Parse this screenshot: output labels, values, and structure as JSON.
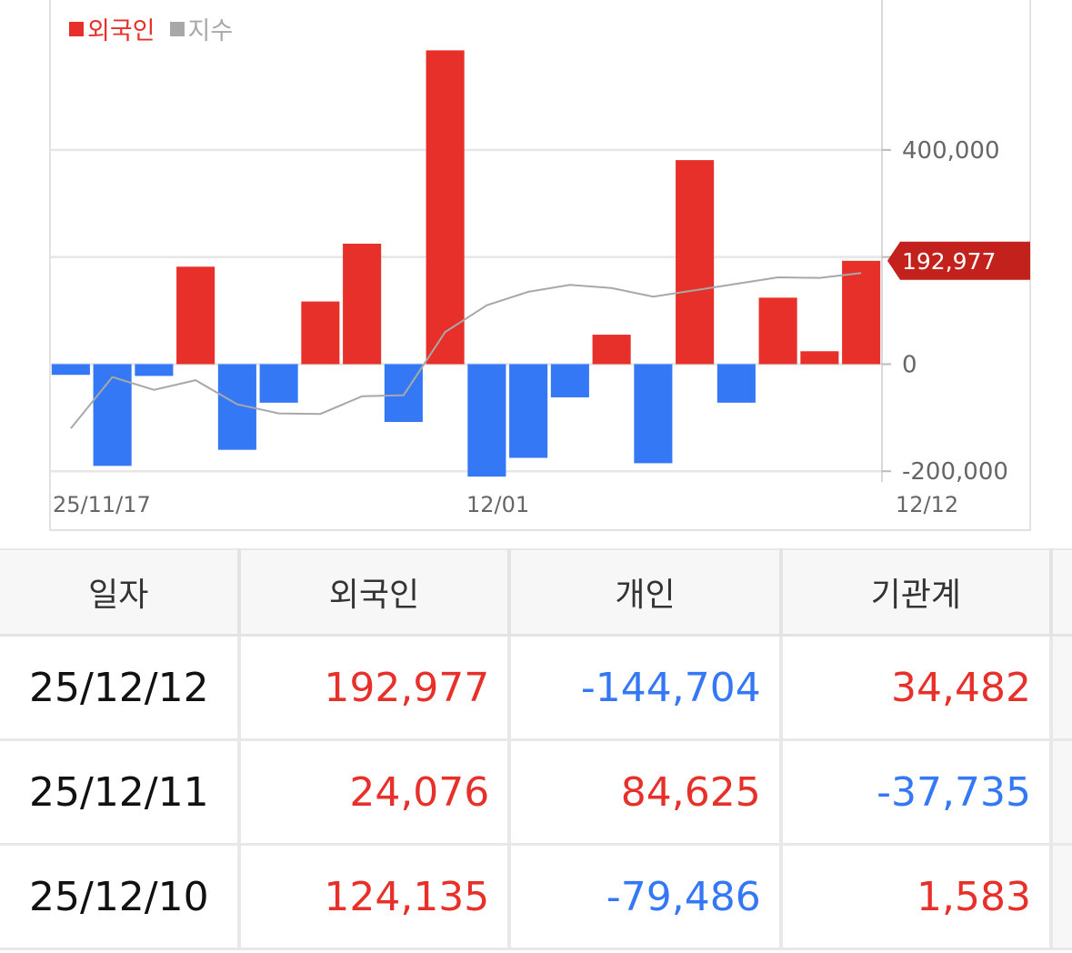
{
  "legend": [
    {
      "label": "외국인",
      "color": "#e8302a"
    },
    {
      "label": "지수",
      "color": "#a8a8a8"
    }
  ],
  "colors": {
    "positive": "#e8302a",
    "negative": "#3478f6",
    "index_line": "#a8a8a8",
    "last_badge": "#c3211c"
  },
  "chart_data": {
    "type": "bar",
    "series": [
      {
        "name": "외국인",
        "values": [
          -20000,
          -190000,
          -22000,
          182000,
          -160000,
          -72000,
          117000,
          225000,
          -108000,
          586000,
          -210000,
          -175000,
          -62000,
          55000,
          -185000,
          381000,
          -72000,
          124135,
          24076,
          192977
        ]
      },
      {
        "name": "지수",
        "values": [
          -120000,
          -24000,
          -48000,
          -30000,
          -75000,
          -92000,
          -93000,
          -60000,
          -58000,
          60000,
          110000,
          135000,
          148000,
          142000,
          126000,
          138000,
          150000,
          162000,
          161000,
          170000
        ]
      }
    ],
    "x_tick_labels": [
      "25/11/17",
      "12/01",
      "12/12"
    ],
    "y_ticks": [
      "400,000",
      "0",
      "-200,000"
    ],
    "ylim": [
      -220000,
      680000
    ],
    "last_value_label": "192,977",
    "grid": true
  },
  "table": {
    "headers": [
      "일자",
      "외국인",
      "개인",
      "기관계"
    ],
    "rows": [
      {
        "date": "25/12/12",
        "foreign": "192,977",
        "individual": "-144,704",
        "institution": "34,482"
      },
      {
        "date": "25/12/11",
        "foreign": "24,076",
        "individual": "84,625",
        "institution": "-37,735"
      },
      {
        "date": "25/12/10",
        "foreign": "124,135",
        "individual": "-79,486",
        "institution": "1,583"
      }
    ]
  }
}
